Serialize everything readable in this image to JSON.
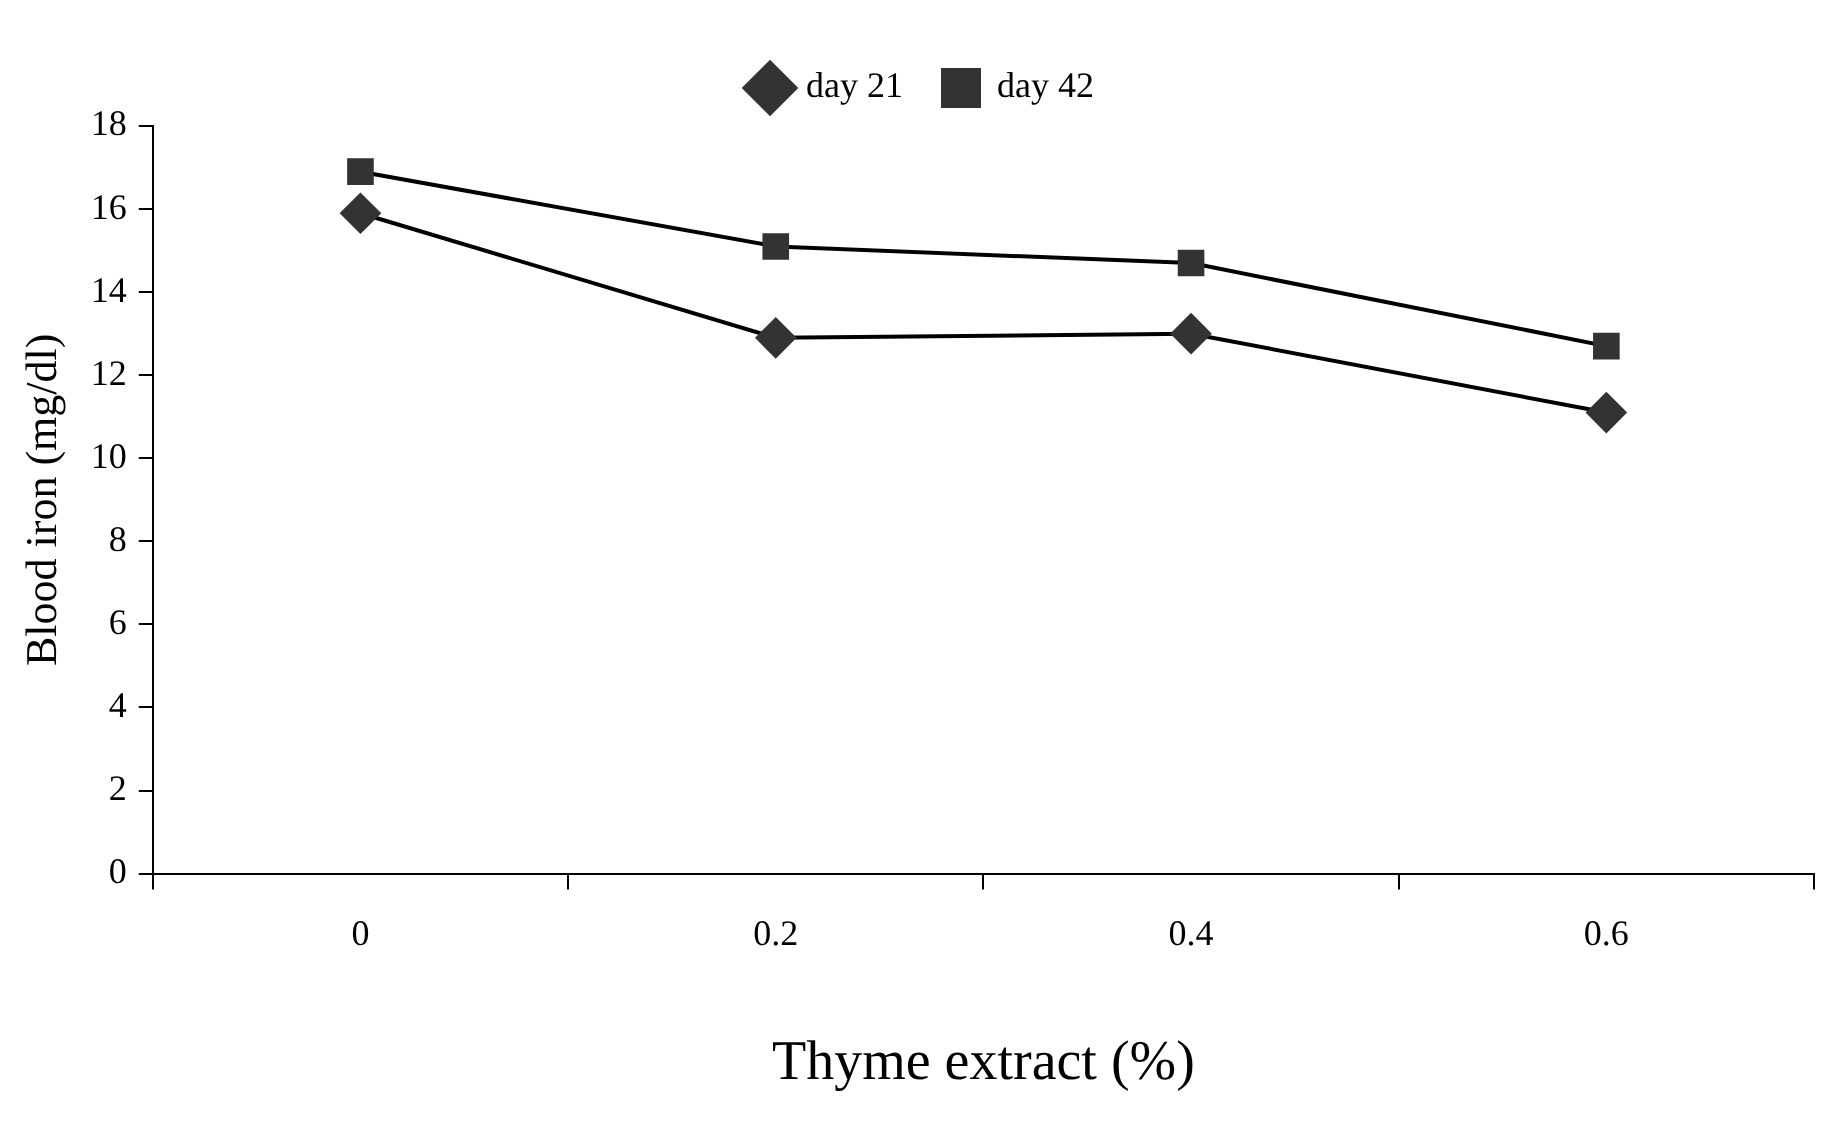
{
  "chart_data": {
    "type": "line",
    "xlabel": "Thyme extract (%)",
    "ylabel": "Blood iron (mg/dl)",
    "categories": [
      "0",
      "0.2",
      "0.4",
      "0.6"
    ],
    "series": [
      {
        "name": "day 21",
        "color": "#000000",
        "marker": "diamond",
        "values": [
          15.9,
          12.9,
          13.0,
          11.1
        ]
      },
      {
        "name": "day 42",
        "color": "#000000",
        "marker": "square",
        "values": [
          16.9,
          15.1,
          14.7,
          12.7
        ]
      }
    ],
    "ylim": [
      0,
      18
    ],
    "yticks": [
      0,
      2,
      4,
      6,
      8,
      10,
      12,
      14,
      16,
      18
    ],
    "grid": false,
    "legend": "top",
    "line_style": "solid"
  }
}
